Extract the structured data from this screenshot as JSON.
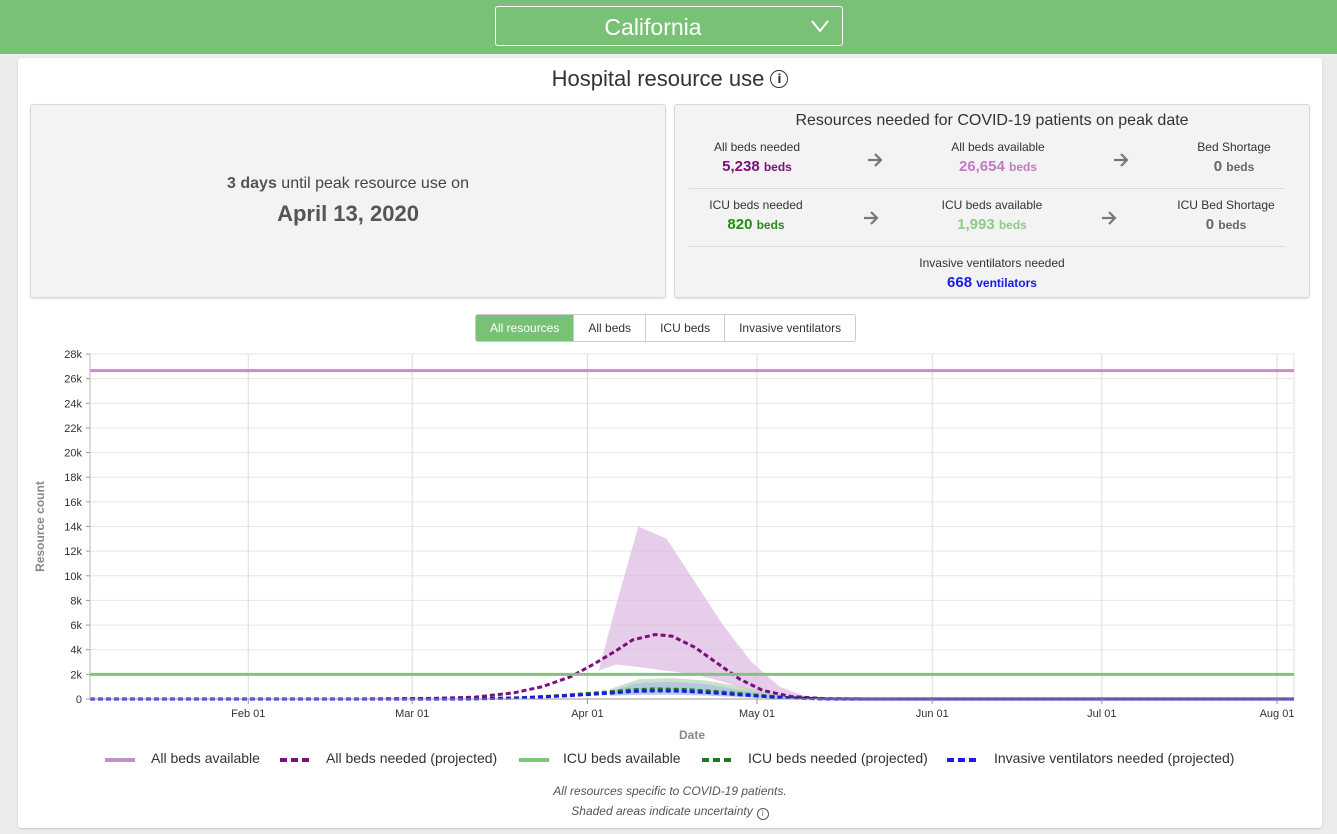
{
  "header": {
    "state_value": "California",
    "chevron_icon": "chevron-down-icon"
  },
  "main": {
    "title": "Hospital resource use",
    "info_icon": "info-icon"
  },
  "peak": {
    "days_value": "3 days",
    "days_rest": "until peak resource use on",
    "date": "April 13, 2020"
  },
  "resources": {
    "title": "Resources needed for COVID-19 patients on peak date",
    "rows": [
      [
        {
          "label": "All beds needed",
          "value": "5,238",
          "unit": "beds",
          "color": "#7b0f7b"
        },
        {
          "label": "All beds available",
          "value": "26,654",
          "unit": "beds",
          "color": "#c07dc4"
        },
        {
          "label": "Bed Shortage",
          "value": "0",
          "unit": "beds",
          "color": "#666666"
        }
      ],
      [
        {
          "label": "ICU beds needed",
          "value": "820",
          "unit": "beds",
          "color": "#2a8a1a"
        },
        {
          "label": "ICU beds available",
          "value": "1,993",
          "unit": "beds",
          "color": "#8ecb8a"
        },
        {
          "label": "ICU Bed Shortage",
          "value": "0",
          "unit": "beds",
          "color": "#666666"
        }
      ]
    ],
    "ventilators": {
      "label": "Invasive ventilators needed",
      "value": "668",
      "unit": "ventilators",
      "color": "#1a1ae6"
    }
  },
  "tabs": [
    {
      "label": "All resources",
      "active": true
    },
    {
      "label": "All beds",
      "active": false
    },
    {
      "label": "ICU beds",
      "active": false
    },
    {
      "label": "Invasive ventilators",
      "active": false
    }
  ],
  "chart_data": {
    "type": "line",
    "xlabel": "Date",
    "ylabel": "Resource count",
    "x_ticks": [
      "Feb 01",
      "Mar 01",
      "Apr 01",
      "May 01",
      "Jun 01",
      "Jul 01",
      "Aug 01"
    ],
    "x_tick_dates": [
      "2020-02-01",
      "2020-03-01",
      "2020-04-01",
      "2020-05-01",
      "2020-06-01",
      "2020-07-01",
      "2020-08-01"
    ],
    "x_range": [
      "2020-01-04",
      "2020-08-04"
    ],
    "y_ticks": [
      "0",
      "2k",
      "4k",
      "6k",
      "8k",
      "10k",
      "12k",
      "14k",
      "16k",
      "18k",
      "20k",
      "22k",
      "24k",
      "26k",
      "28k"
    ],
    "ylim": [
      0,
      28000
    ],
    "grid": true,
    "series": [
      {
        "name": "All beds available",
        "style": "solid",
        "color": "#c490c8",
        "points": [
          [
            "2020-01-04",
            26654
          ],
          [
            "2020-08-04",
            26654
          ]
        ]
      },
      {
        "name": "All beds needed (projected)",
        "style": "dashed",
        "color": "#7b0f7b",
        "points": [
          [
            "2020-01-04",
            0
          ],
          [
            "2020-02-20",
            0
          ],
          [
            "2020-03-05",
            50
          ],
          [
            "2020-03-12",
            150
          ],
          [
            "2020-03-19",
            500
          ],
          [
            "2020-03-24",
            1000
          ],
          [
            "2020-03-29",
            1800
          ],
          [
            "2020-04-02",
            2800
          ],
          [
            "2020-04-06",
            3900
          ],
          [
            "2020-04-09",
            4800
          ],
          [
            "2020-04-13",
            5238
          ],
          [
            "2020-04-16",
            5100
          ],
          [
            "2020-04-20",
            4200
          ],
          [
            "2020-04-24",
            2900
          ],
          [
            "2020-04-28",
            1600
          ],
          [
            "2020-05-02",
            700
          ],
          [
            "2020-05-07",
            200
          ],
          [
            "2020-05-13",
            30
          ],
          [
            "2020-05-20",
            0
          ],
          [
            "2020-08-04",
            0
          ]
        ]
      },
      {
        "name": "ICU beds available",
        "style": "solid",
        "color": "#7fc47b",
        "points": [
          [
            "2020-01-04",
            1993
          ],
          [
            "2020-08-04",
            1993
          ]
        ]
      },
      {
        "name": "ICU beds needed (projected)",
        "style": "dashed",
        "color": "#1e7a1e",
        "points": [
          [
            "2020-01-04",
            0
          ],
          [
            "2020-03-10",
            0
          ],
          [
            "2020-03-20",
            100
          ],
          [
            "2020-03-28",
            300
          ],
          [
            "2020-04-04",
            550
          ],
          [
            "2020-04-09",
            750
          ],
          [
            "2020-04-13",
            820
          ],
          [
            "2020-04-18",
            780
          ],
          [
            "2020-04-24",
            600
          ],
          [
            "2020-04-30",
            350
          ],
          [
            "2020-05-06",
            120
          ],
          [
            "2020-05-13",
            0
          ],
          [
            "2020-08-04",
            0
          ]
        ]
      },
      {
        "name": "Invasive ventilators needed (projected)",
        "style": "dashed",
        "color": "#1a1ae6",
        "points": [
          [
            "2020-01-04",
            0
          ],
          [
            "2020-03-10",
            0
          ],
          [
            "2020-03-20",
            80
          ],
          [
            "2020-03-28",
            250
          ],
          [
            "2020-04-04",
            450
          ],
          [
            "2020-04-09",
            620
          ],
          [
            "2020-04-13",
            668
          ],
          [
            "2020-04-18",
            630
          ],
          [
            "2020-04-24",
            480
          ],
          [
            "2020-04-30",
            280
          ],
          [
            "2020-05-06",
            100
          ],
          [
            "2020-05-13",
            0
          ],
          [
            "2020-08-04",
            0
          ]
        ]
      }
    ],
    "bands": [
      {
        "name": "All beds needed uncertainty",
        "color": "#dcb8e0",
        "upper": [
          [
            "2020-04-03",
            2300
          ],
          [
            "2020-04-06",
            7500
          ],
          [
            "2020-04-10",
            14000
          ],
          [
            "2020-04-15",
            13000
          ],
          [
            "2020-04-20",
            9500
          ],
          [
            "2020-04-25",
            6000
          ],
          [
            "2020-04-30",
            3000
          ],
          [
            "2020-05-05",
            1000
          ],
          [
            "2020-05-10",
            150
          ]
        ],
        "lower": [
          [
            "2020-05-10",
            0
          ],
          [
            "2020-05-05",
            100
          ],
          [
            "2020-04-30",
            600
          ],
          [
            "2020-04-25",
            1400
          ],
          [
            "2020-04-20",
            2000
          ],
          [
            "2020-04-15",
            2300
          ],
          [
            "2020-04-10",
            2600
          ],
          [
            "2020-04-06",
            2800
          ],
          [
            "2020-04-03",
            2300
          ]
        ]
      },
      {
        "name": "ICU beds needed uncertainty",
        "color": "#b4d6b4",
        "upper": [
          [
            "2020-04-05",
            800
          ],
          [
            "2020-04-10",
            1600
          ],
          [
            "2020-04-16",
            1700
          ],
          [
            "2020-04-22",
            1500
          ],
          [
            "2020-04-28",
            1000
          ],
          [
            "2020-05-04",
            400
          ],
          [
            "2020-05-08",
            50
          ]
        ],
        "lower": [
          [
            "2020-05-08",
            0
          ],
          [
            "2020-05-04",
            50
          ],
          [
            "2020-04-28",
            200
          ],
          [
            "2020-04-22",
            350
          ],
          [
            "2020-04-16",
            450
          ],
          [
            "2020-04-10",
            400
          ],
          [
            "2020-04-05",
            300
          ]
        ]
      },
      {
        "name": "Invasive ventilators needed uncertainty",
        "color": "#a9bfe3",
        "upper": [
          [
            "2020-04-05",
            650
          ],
          [
            "2020-04-10",
            1300
          ],
          [
            "2020-04-16",
            1400
          ],
          [
            "2020-04-22",
            1200
          ],
          [
            "2020-04-28",
            750
          ],
          [
            "2020-05-04",
            300
          ],
          [
            "2020-05-08",
            40
          ]
        ],
        "lower": [
          [
            "2020-05-08",
            0
          ],
          [
            "2020-05-04",
            40
          ],
          [
            "2020-04-28",
            150
          ],
          [
            "2020-04-22",
            280
          ],
          [
            "2020-04-16",
            350
          ],
          [
            "2020-04-10",
            330
          ],
          [
            "2020-04-05",
            250
          ]
        ]
      }
    ]
  },
  "legend": [
    {
      "label": "All beds available",
      "color": "#c490c8",
      "style": "solid"
    },
    {
      "label": "All beds needed (projected)",
      "color": "#7b0f7b",
      "style": "dashed"
    },
    {
      "label": "ICU beds available",
      "color": "#7fc47b",
      "style": "solid"
    },
    {
      "label": "ICU beds needed (projected)",
      "color": "#1e7a1e",
      "style": "dashed"
    },
    {
      "label": "Invasive ventilators needed (projected)",
      "color": "#1a1ae6",
      "style": "dashed"
    }
  ],
  "notes": {
    "line1": "All resources specific to COVID-19 patients.",
    "line2": "Shaded areas indicate uncertainty"
  }
}
